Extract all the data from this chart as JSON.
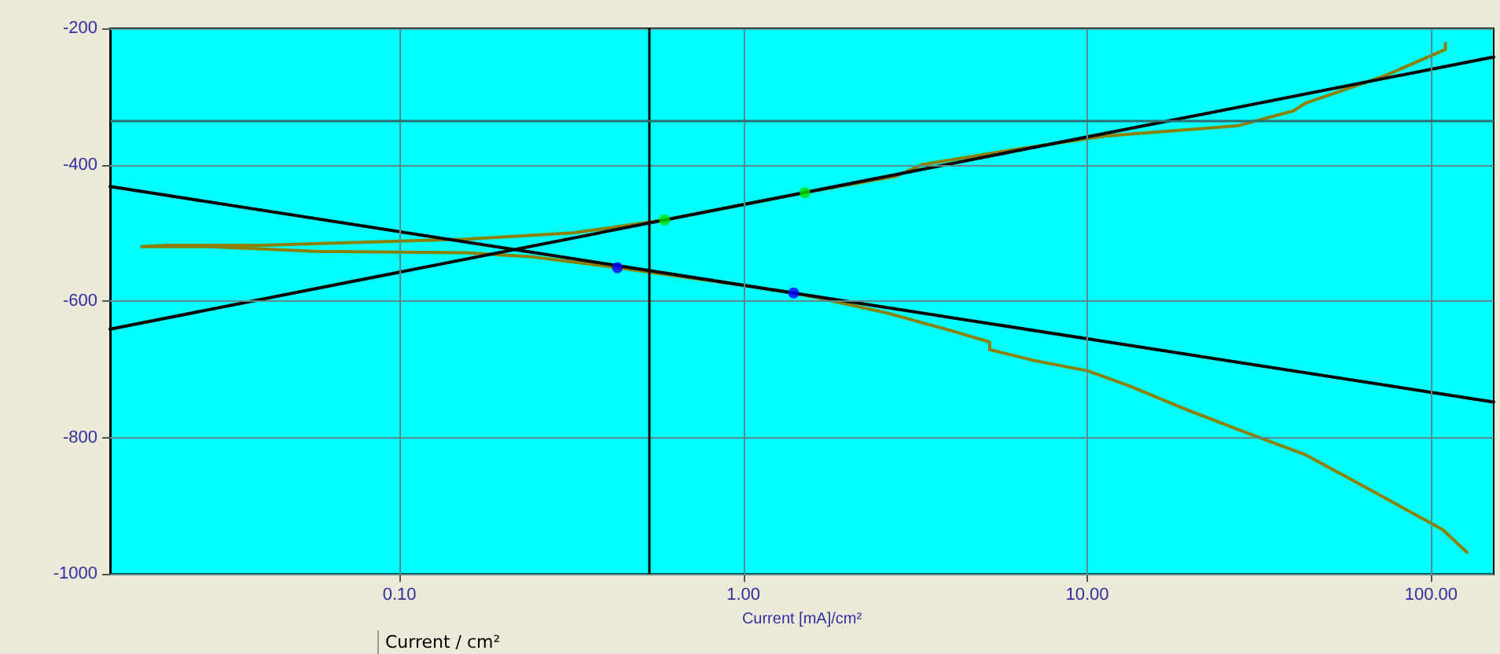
{
  "chart_data": {
    "type": "line",
    "xlabel": "Current [mA]/cm²",
    "annotations": [
      "Current / cm²"
    ],
    "log": "x",
    "grid": true,
    "marker": "none",
    "line_style": "solid",
    "xlim": [
      0.0144,
      152
    ],
    "xticks": [
      {
        "value": 0.1,
        "label": "0.10"
      },
      {
        "value": 1,
        "label": "1.00"
      },
      {
        "value": 10,
        "label": "10.00"
      },
      {
        "value": 100,
        "label": "100.00"
      }
    ],
    "ylim": [
      -1000,
      -200
    ],
    "yticks": [
      -200,
      -400,
      -600,
      -800,
      -1000
    ],
    "ref_lines": [
      {
        "axis": "x",
        "value": 0.53,
        "label": null,
        "color": "#000000"
      },
      {
        "axis": "y",
        "value": -336,
        "label": null,
        "color": "#2f6f6f"
      }
    ],
    "series": [
      {
        "color": "#8c8000",
        "x": [
          127,
          108,
          70.7,
          43,
          28,
          19,
          13.2,
          10,
          7.0,
          5.2,
          5.2,
          4.0,
          2.6,
          1.64,
          1.4,
          1.0,
          0.43,
          0.244,
          0.156,
          0.057,
          0.028,
          0.0178,
          0.0213,
          0.04,
          0.156,
          0.32,
          0.59,
          1.51,
          2.77,
          3.3,
          6.65,
          11.3,
          27.3,
          39.8,
          43,
          73,
          110,
          110
        ],
        "values": [
          -968,
          -935,
          -884,
          -825,
          -790,
          -757,
          -724,
          -702,
          -687,
          -671,
          -660,
          -643,
          -617,
          -595,
          -588,
          -577,
          -551,
          -535,
          -529,
          -527,
          -520,
          -520,
          -518,
          -518,
          -509,
          -500,
          -481,
          -441,
          -417,
          -400,
          -375,
          -358,
          -343,
          -321,
          -310,
          -270,
          -231,
          -222
        ]
      },
      {
        "color": "#000000",
        "x": [
          0.0144,
          152
        ],
        "values": [
          -641,
          -242
        ]
      },
      {
        "color": "#000000",
        "x": [
          0.0144,
          152
        ],
        "values": [
          -432,
          -748
        ]
      },
      {
        "type": "scatter",
        "marker": "circle",
        "color": "#00e000",
        "x": [
          0.59,
          1.51
        ],
        "values": [
          -481,
          -441
        ]
      },
      {
        "type": "scatter",
        "marker": "circle",
        "color": "#0000ff",
        "x": [
          0.43,
          1.4
        ],
        "values": [
          -551,
          -588
        ]
      }
    ]
  }
}
